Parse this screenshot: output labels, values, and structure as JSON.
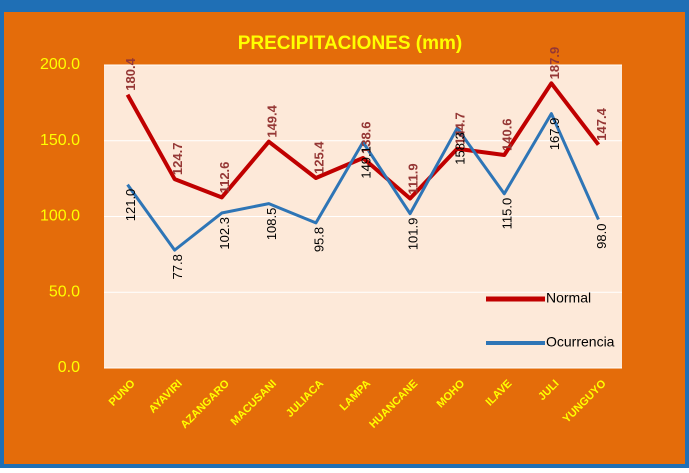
{
  "chart_data": {
    "type": "line",
    "title": "PRECIPITACIONES (mm)",
    "categories": [
      "PUNO",
      "AYAVIRI",
      "AZANGARO",
      "MACUSANI",
      "JULIACA",
      "LAMPA",
      "HUANCANE",
      "MOHO",
      "ILAVE",
      "JULI",
      "YUNGUYO"
    ],
    "series": [
      {
        "name": "Normal",
        "color": "#c00000",
        "values": [
          180.4,
          124.7,
          112.6,
          149.4,
          125.4,
          138.6,
          111.9,
          144.7,
          140.6,
          187.9,
          147.4
        ]
      },
      {
        "name": "Ocurrencia",
        "color": "#2e75b6",
        "values": [
          121,
          77.8,
          102.3,
          108.5,
          95.8,
          149.1,
          101.9,
          158.3,
          115,
          167.9,
          98
        ],
        "value_labels": [
          "121.0",
          "77.8",
          "102.3",
          "108.5",
          "95.8",
          "149.1",
          "101.9",
          "158.3",
          "115.0",
          "167.9",
          "98.0"
        ]
      }
    ],
    "ylim": [
      0,
      200
    ],
    "yticks": [
      {
        "value": 0,
        "label": "0.0"
      },
      {
        "value": 50,
        "label": "50.0"
      },
      {
        "value": 100,
        "label": "100.0"
      },
      {
        "value": 150,
        "label": "150.0"
      },
      {
        "value": 200,
        "label": "200.0"
      }
    ],
    "grid": true,
    "legend": "lower right"
  }
}
